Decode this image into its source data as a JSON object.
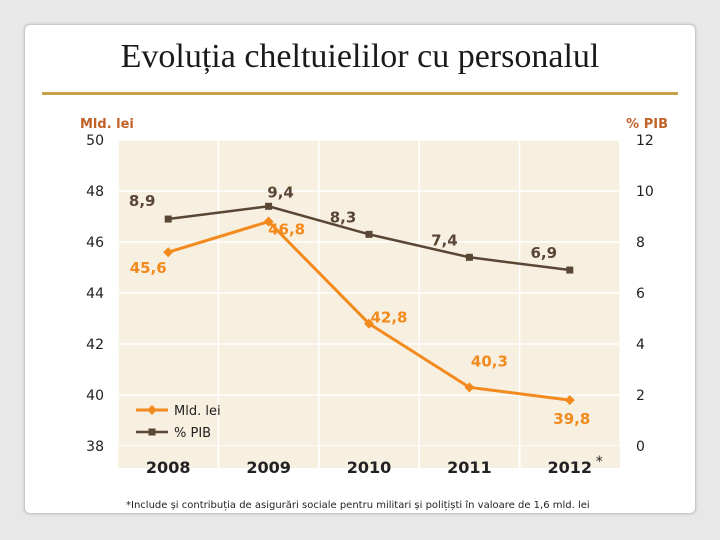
{
  "title": "Evoluția cheltuielilor cu personalul",
  "footnote": "*Include și contribuția de asigurări sociale pentru militari și polițiști în valoare de 1,6 mld. lei",
  "colors": {
    "plot_bg": "#f7efe0",
    "rule": "#c8a24a",
    "series_lei": "#f28a1e",
    "series_pib": "#5a4634",
    "axis_title": "#c0622a"
  },
  "chart_data": {
    "type": "line",
    "categories": [
      "2008",
      "2009",
      "2010",
      "2011",
      "2012"
    ],
    "category_markers": [
      "",
      "",
      "",
      "",
      "*"
    ],
    "y_left": {
      "label": "Mld. lei",
      "range": [
        38,
        50
      ],
      "ticks": [
        38,
        40,
        42,
        44,
        46,
        48,
        50
      ]
    },
    "y_right": {
      "label": "% PIB",
      "range": [
        0,
        12
      ],
      "ticks": [
        0,
        2,
        4,
        6,
        8,
        10,
        12
      ]
    },
    "series": [
      {
        "name": "Mld. lei",
        "axis": "left",
        "marker": "diamond",
        "values": [
          45.6,
          46.8,
          42.8,
          40.3,
          39.8
        ],
        "labels": [
          "45,6",
          "46,8",
          "42,8",
          "40,3",
          "39,8"
        ]
      },
      {
        "name": "% PIB",
        "axis": "right",
        "marker": "square",
        "values": [
          8.9,
          9.4,
          8.3,
          7.4,
          6.9
        ],
        "labels": [
          "8,9",
          "9,4",
          "8,3",
          "7,4",
          "6,9"
        ]
      }
    ],
    "legend_position": "bottom-left",
    "grid": true
  }
}
